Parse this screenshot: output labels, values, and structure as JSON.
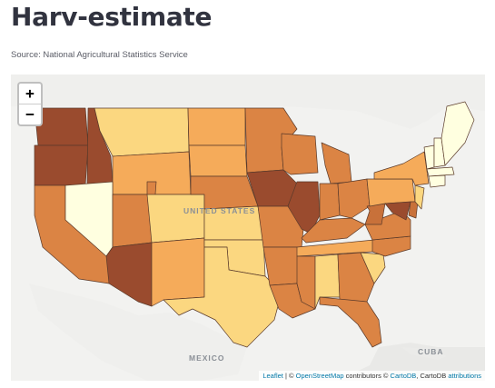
{
  "page": {
    "title": "Harv-estimate",
    "source": "Source: National Agricultural Statistics Service"
  },
  "map": {
    "zoom_in_label": "+",
    "zoom_out_label": "−",
    "labels": {
      "mexico": "MEXICO",
      "cuba": "CUBA",
      "united_states": "UNITED STATES"
    },
    "attribution": {
      "leaflet": "Leaflet",
      "sep1": " | © ",
      "osm": "OpenStreetMap",
      "mid": " contributors © ",
      "cartodb": "CartoDB",
      "mid2": ", CartoDB ",
      "attributions": "attributions"
    }
  },
  "palette": {
    "c1": "#ffffe0",
    "c2": "#fbd780",
    "c3": "#f5ab5a",
    "c4": "#db8444",
    "c5": "#c8713a",
    "c6": "#9a4b2e",
    "ocean": "#e9e9e7",
    "land": "#f2f2f0",
    "border": "#5a3a2a"
  },
  "states": [
    {
      "code": "WA",
      "class": "c6"
    },
    {
      "code": "OR",
      "class": "c6"
    },
    {
      "code": "ID",
      "class": "c6"
    },
    {
      "code": "MT",
      "class": "c2"
    },
    {
      "code": "WY",
      "class": "c3"
    },
    {
      "code": "ND",
      "class": "c3"
    },
    {
      "code": "SD",
      "class": "c3"
    },
    {
      "code": "NE",
      "class": "c4"
    },
    {
      "code": "MN",
      "class": "c4"
    },
    {
      "code": "WI",
      "class": "c4"
    },
    {
      "code": "MI",
      "class": "c4"
    },
    {
      "code": "IA",
      "class": "c6"
    },
    {
      "code": "IL",
      "class": "c6"
    },
    {
      "code": "CA",
      "class": "c4"
    },
    {
      "code": "NV",
      "class": "c1"
    },
    {
      "code": "UT",
      "class": "c4"
    },
    {
      "code": "AZ",
      "class": "c6"
    },
    {
      "code": "CO",
      "class": "c2"
    },
    {
      "code": "NM",
      "class": "c3"
    },
    {
      "code": "KS",
      "class": "c2"
    },
    {
      "code": "OK",
      "class": "c2"
    },
    {
      "code": "TX",
      "class": "c2"
    },
    {
      "code": "MO",
      "class": "c4"
    },
    {
      "code": "AR",
      "class": "c4"
    },
    {
      "code": "LA",
      "class": "c4"
    },
    {
      "code": "MS",
      "class": "c4"
    },
    {
      "code": "AL",
      "class": "c2"
    },
    {
      "code": "GA",
      "class": "c4"
    },
    {
      "code": "FL",
      "class": "c4"
    },
    {
      "code": "SC",
      "class": "c2"
    },
    {
      "code": "NC",
      "class": "c4"
    },
    {
      "code": "TN",
      "class": "c3"
    },
    {
      "code": "KY",
      "class": "c4"
    },
    {
      "code": "IN",
      "class": "c4"
    },
    {
      "code": "OH",
      "class": "c4"
    },
    {
      "code": "WV",
      "class": "c5"
    },
    {
      "code": "VA",
      "class": "c4"
    },
    {
      "code": "PA",
      "class": "c3"
    },
    {
      "code": "NY",
      "class": "c3"
    },
    {
      "code": "MD",
      "class": "c6"
    },
    {
      "code": "DE",
      "class": "c5"
    },
    {
      "code": "NJ",
      "class": "c2"
    },
    {
      "code": "VT",
      "class": "c1"
    },
    {
      "code": "NH",
      "class": "c1"
    },
    {
      "code": "ME",
      "class": "c1"
    },
    {
      "code": "MA",
      "class": "c1"
    },
    {
      "code": "CT",
      "class": "c1"
    }
  ]
}
